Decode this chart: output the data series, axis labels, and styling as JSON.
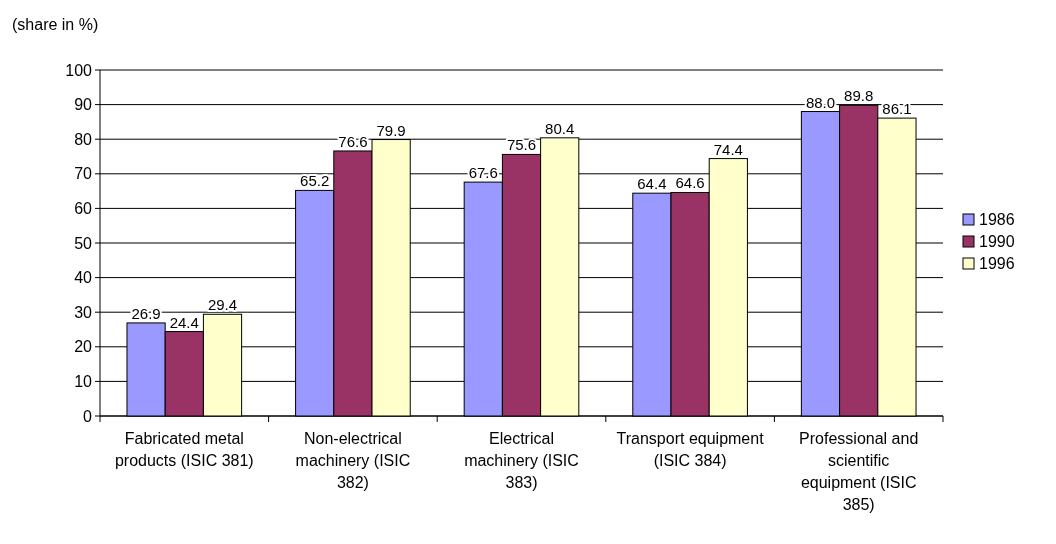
{
  "chart_data": {
    "type": "bar",
    "ylabel": "(share in %)",
    "categories": [
      "Fabricated metal products (ISIC 381)",
      "Non-electrical machinery (ISIC 382)",
      "Electrical machinery (ISIC 383)",
      "Transport equipment (ISIC 384)",
      "Professional and scientific equipment (ISIC 385)"
    ],
    "series": [
      {
        "name": "1986",
        "color": "#9999ff",
        "values": [
          26.9,
          65.2,
          67.6,
          64.4,
          88.0
        ],
        "value_labels": [
          "26.9",
          "65.2",
          "67.6",
          "64.4",
          "88.0"
        ]
      },
      {
        "name": "1990",
        "color": "#993366",
        "values": [
          24.4,
          76.6,
          75.6,
          64.6,
          89.8
        ],
        "value_labels": [
          "24.4",
          "76.6",
          "75.6",
          "64.6",
          "89.8"
        ]
      },
      {
        "name": "1996",
        "color": "#ffffcc",
        "values": [
          29.4,
          79.9,
          80.4,
          74.4,
          86.1
        ],
        "value_labels": [
          "29.4",
          "79.9",
          "80.4",
          "74.4",
          "86.1"
        ]
      }
    ],
    "ylim": [
      0,
      100
    ],
    "yticks": [
      0,
      10,
      20,
      30,
      40,
      50,
      60,
      70,
      80,
      90,
      100
    ],
    "grid": "y",
    "legend": "right"
  }
}
